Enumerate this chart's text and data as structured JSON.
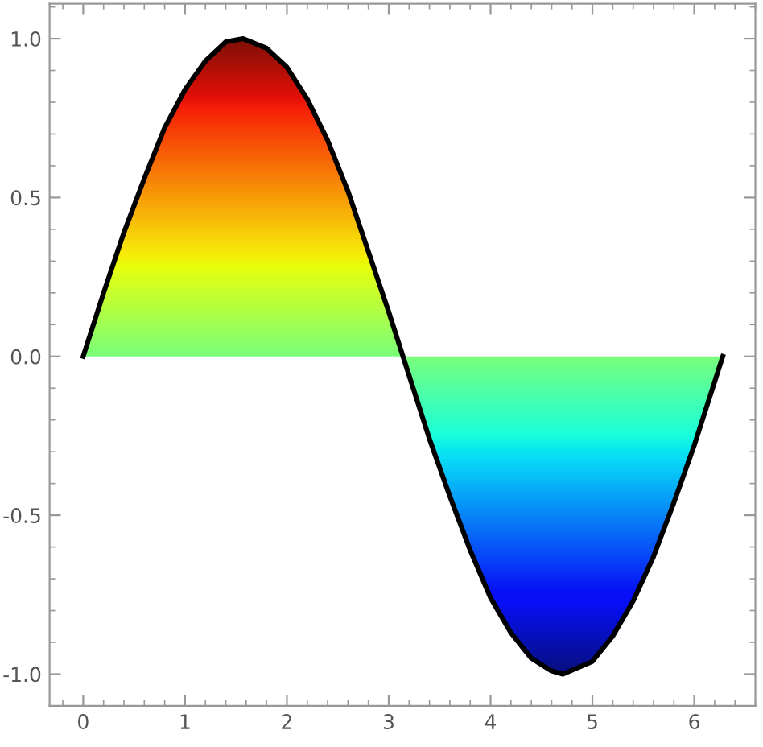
{
  "chart_data": {
    "type": "area",
    "x": [
      0,
      0.2,
      0.4,
      0.6,
      0.8,
      1.0,
      1.2,
      1.4,
      1.57,
      1.8,
      2.0,
      2.2,
      2.4,
      2.6,
      2.8,
      3.0,
      3.14,
      3.2,
      3.4,
      3.6,
      3.8,
      4.0,
      4.2,
      4.4,
      4.6,
      4.71,
      5.0,
      5.2,
      5.4,
      5.6,
      5.8,
      6.0,
      6.2,
      6.28
    ],
    "series": [
      {
        "color": "#000000",
        "values": [
          0,
          0.2,
          0.39,
          0.56,
          0.72,
          0.84,
          0.93,
          0.99,
          1.0,
          0.97,
          0.91,
          0.81,
          0.68,
          0.52,
          0.33,
          0.14,
          0,
          -0.06,
          -0.26,
          -0.44,
          -0.61,
          -0.76,
          -0.87,
          -0.95,
          -0.99,
          -1.0,
          -0.96,
          -0.88,
          -0.77,
          -0.63,
          -0.46,
          -0.28,
          -0.08,
          0
        ]
      }
    ],
    "xlim": [
      -0.33,
      6.6
    ],
    "ylim": [
      -1.1,
      1.11
    ],
    "xticks": [
      0,
      1,
      2,
      3,
      4,
      5,
      6
    ],
    "yticks": [
      {
        "value": -1.0,
        "label": "-1.0"
      },
      {
        "value": -0.5,
        "label": "-0.5"
      },
      {
        "value": 0,
        "label": "0.0"
      },
      {
        "value": 0.5,
        "label": "0.5"
      },
      {
        "value": 1.0,
        "label": "1.0"
      }
    ],
    "grid": false,
    "legend": false
  }
}
